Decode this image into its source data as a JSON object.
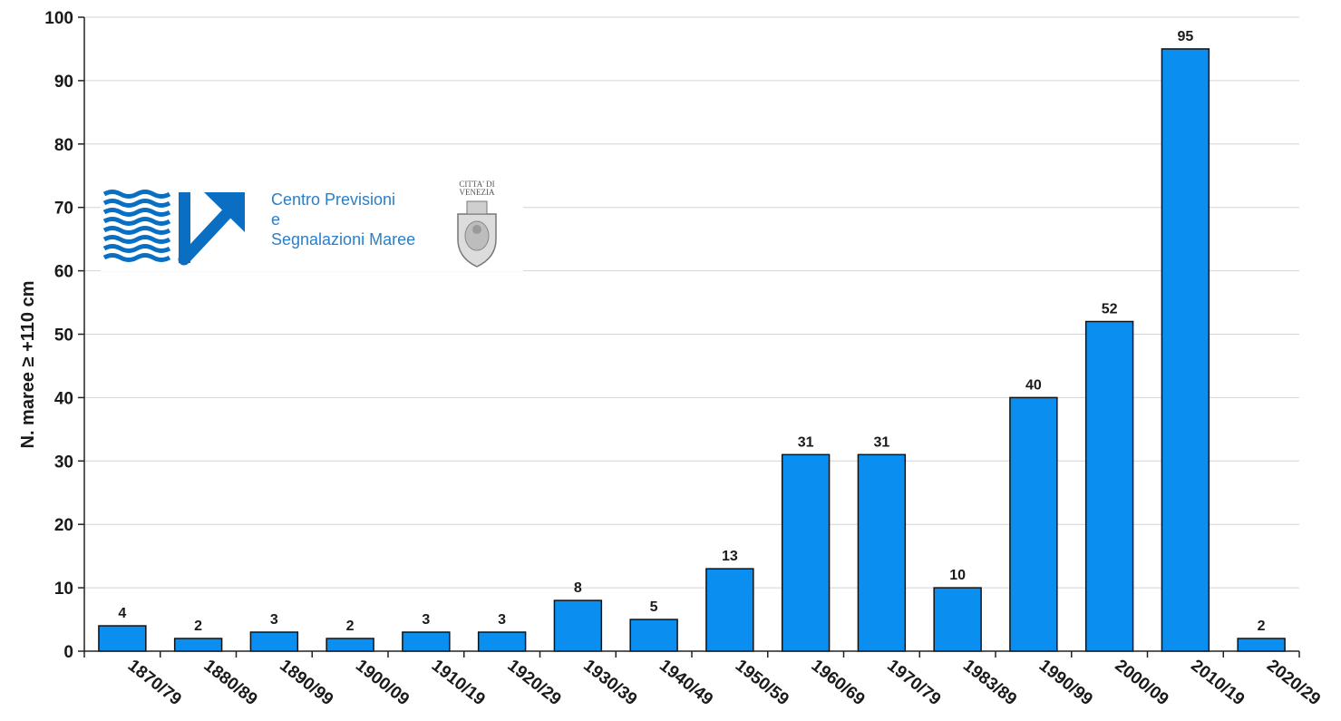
{
  "chart_data": {
    "type": "bar",
    "categories": [
      "1870/79",
      "1880/89",
      "1890/99",
      "1900/09",
      "1910/19",
      "1920/29",
      "1930/39",
      "1940/49",
      "1950/59",
      "1960/69",
      "1970/79",
      "1983/89",
      "1990/99",
      "2000/09",
      "2010/19",
      "2020/29"
    ],
    "values": [
      4,
      2,
      3,
      2,
      3,
      3,
      8,
      5,
      13,
      31,
      31,
      10,
      40,
      52,
      95,
      2
    ],
    "title": "",
    "xlabel": "",
    "ylabel": "N. maree ≥ +110 cm",
    "ylim": [
      0,
      100
    ],
    "yticks": [
      0,
      10,
      20,
      30,
      40,
      50,
      60,
      70,
      80,
      90,
      100
    ],
    "grid": true,
    "legend": "none",
    "bar_color": "#0a8ff0",
    "bar_edge_color": "#111111",
    "data_labels": true
  },
  "logo": {
    "org_name_line1": "Centro Previsioni",
    "org_name_line2": "e",
    "org_name_line3": "Segnalazioni Maree",
    "org_icon": "waves-arrow-icon",
    "seal_caption": "CITTA' DI VENEZIA",
    "seal_icon": "venice-seal-icon",
    "brand_color": "#0a6fc2"
  }
}
